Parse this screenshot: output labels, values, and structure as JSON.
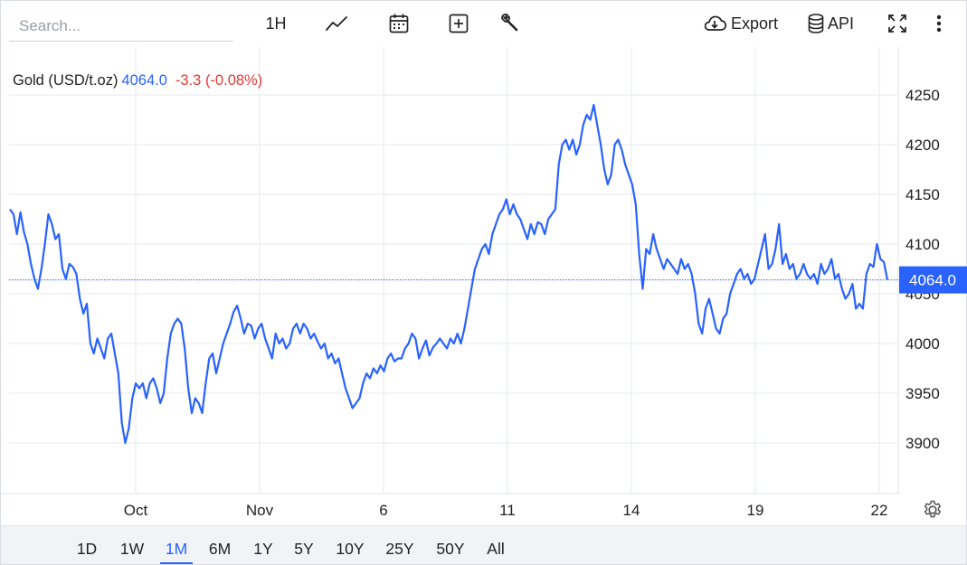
{
  "search": {
    "placeholder": "Search..."
  },
  "toolbar": {
    "interval_label": "1H",
    "export_label": "Export",
    "api_label": "API",
    "icons": [
      "line-chart-icon",
      "calendar-icon",
      "add-box-icon",
      "wrench-icon",
      "cloud-download-icon",
      "database-icon",
      "fullscreen-icon",
      "more-vertical-icon"
    ]
  },
  "legend": {
    "symbol": "Gold (USD/t.oz)",
    "last": "4064.0",
    "change": "-3.3 (-0.08%)"
  },
  "price_badge": "4064.0",
  "colors": {
    "line": "#2962ff",
    "badge": "#2962ff",
    "negative": "#e53935",
    "grid": "#e6e8eb",
    "range_bg": "#f1f3f6"
  },
  "range": {
    "buttons": [
      "1D",
      "1W",
      "1M",
      "6M",
      "1Y",
      "5Y",
      "10Y",
      "25Y",
      "50Y",
      "All"
    ],
    "active": "1M"
  },
  "chart_data": {
    "type": "line",
    "title": "",
    "xlabel": "",
    "ylabel": "",
    "x_tick_labels": [
      "Oct",
      "Nov",
      "6",
      "11",
      "14",
      "19",
      "22"
    ],
    "y_tick_labels": [
      "3900",
      "3950",
      "4000",
      "4050",
      "4100",
      "4150",
      "4200",
      "4250"
    ],
    "ylim": [
      3850,
      4290
    ],
    "grid": true,
    "last_price_line": 4064.0,
    "series": [
      {
        "values": [
          4135,
          4130,
          4110,
          4132,
          4112,
          4100,
          4080,
          4065,
          4055,
          4075,
          4100,
          4130,
          4120,
          4105,
          4110,
          4075,
          4065,
          4080,
          4077,
          4070,
          4045,
          4030,
          4040,
          4000,
          3990,
          4005,
          3995,
          3985,
          4005,
          4010,
          3990,
          3970,
          3920,
          3900,
          3915,
          3945,
          3960,
          3955,
          3960,
          3945,
          3960,
          3965,
          3955,
          3940,
          3950,
          3985,
          4010,
          4020,
          4025,
          4020,
          3995,
          3955,
          3930,
          3945,
          3940,
          3930,
          3960,
          3985,
          3990,
          3970,
          3985,
          4000,
          4010,
          4020,
          4032,
          4038,
          4025,
          4010,
          4020,
          4018,
          4005,
          4015,
          4020,
          4005,
          3995,
          3985,
          4010,
          4000,
          4005,
          3995,
          4000,
          4015,
          4020,
          4010,
          4020,
          4015,
          4005,
          4010,
          4002,
          3995,
          4000,
          3985,
          3990,
          3980,
          3985,
          3970,
          3955,
          3945,
          3935,
          3940,
          3945,
          3960,
          3970,
          3965,
          3975,
          3970,
          3978,
          3972,
          3985,
          3990,
          3982,
          3985,
          3985,
          3995,
          4000,
          4010,
          4005,
          3985,
          3995,
          4003,
          3988,
          3996,
          4000,
          4005,
          4000,
          3995,
          4005,
          4000,
          4010,
          4000,
          4015,
          4035,
          4055,
          4075,
          4085,
          4095,
          4100,
          4090,
          4110,
          4120,
          4130,
          4135,
          4145,
          4130,
          4140,
          4130,
          4125,
          4115,
          4105,
          4120,
          4110,
          4122,
          4120,
          4110,
          4125,
          4130,
          4135,
          4180,
          4200,
          4205,
          4195,
          4205,
          4190,
          4200,
          4220,
          4230,
          4225,
          4240,
          4220,
          4200,
          4175,
          4160,
          4170,
          4200,
          4205,
          4195,
          4180,
          4170,
          4160,
          4140,
          4090,
          4055,
          4095,
          4090,
          4110,
          4095,
          4085,
          4075,
          4085,
          4080,
          4075,
          4070,
          4085,
          4075,
          4080,
          4070,
          4050,
          4020,
          4010,
          4035,
          4045,
          4030,
          4015,
          4010,
          4025,
          4030,
          4050,
          4060,
          4070,
          4075,
          4065,
          4070,
          4060,
          4065,
          4080,
          4095,
          4110,
          4075,
          4080,
          4095,
          4120,
          4080,
          4090,
          4075,
          4080,
          4065,
          4070,
          4080,
          4070,
          4065,
          4070,
          4060,
          4080,
          4070,
          4075,
          4085,
          4065,
          4070,
          4055,
          4045,
          4050,
          4060,
          4035,
          4040,
          4035,
          4070,
          4080,
          4077,
          4100,
          4085,
          4082,
          4064
        ]
      }
    ]
  }
}
